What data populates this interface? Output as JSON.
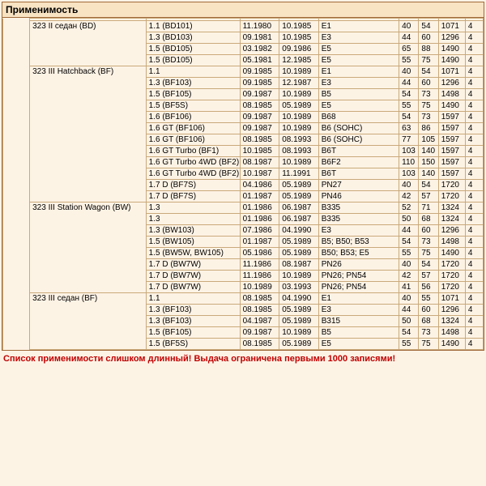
{
  "title": "Применимость",
  "footer": "Список применимости слишком длинный! Выдача ограничена первыми 1000 записями!",
  "groups": [
    {
      "model": "323 II седан (BD)",
      "rows": [
        {
          "spec": "1.1 (BD101)",
          "d1": "11.1980",
          "d2": "10.1985",
          "eng": "E1",
          "n1": "40",
          "n2": "54",
          "n3": "1071",
          "n4": "4"
        },
        {
          "spec": "1.3 (BD103)",
          "d1": "09.1981",
          "d2": "10.1985",
          "eng": "E3",
          "n1": "44",
          "n2": "60",
          "n3": "1296",
          "n4": "4"
        },
        {
          "spec": "1.5 (BD105)",
          "d1": "03.1982",
          "d2": "09.1986",
          "eng": "E5",
          "n1": "65",
          "n2": "88",
          "n3": "1490",
          "n4": "4"
        },
        {
          "spec": "1.5 (BD105)",
          "d1": "05.1981",
          "d2": "12.1985",
          "eng": "E5",
          "n1": "55",
          "n2": "75",
          "n3": "1490",
          "n4": "4"
        }
      ]
    },
    {
      "model": "323 III Hatchback (BF)",
      "rows": [
        {
          "spec": "1.1",
          "d1": "09.1985",
          "d2": "10.1989",
          "eng": "E1",
          "n1": "40",
          "n2": "54",
          "n3": "1071",
          "n4": "4"
        },
        {
          "spec": "1.3 (BF103)",
          "d1": "09.1985",
          "d2": "12.1987",
          "eng": "E3",
          "n1": "44",
          "n2": "60",
          "n3": "1296",
          "n4": "4"
        },
        {
          "spec": "1.5 (BF105)",
          "d1": "09.1987",
          "d2": "10.1989",
          "eng": "B5",
          "n1": "54",
          "n2": "73",
          "n3": "1498",
          "n4": "4"
        },
        {
          "spec": "1.5 (BF5S)",
          "d1": "08.1985",
          "d2": "05.1989",
          "eng": "E5",
          "n1": "55",
          "n2": "75",
          "n3": "1490",
          "n4": "4"
        },
        {
          "spec": "1.6 (BF106)",
          "d1": "09.1987",
          "d2": "10.1989",
          "eng": "B68",
          "n1": "54",
          "n2": "73",
          "n3": "1597",
          "n4": "4"
        },
        {
          "spec": "1.6 GT (BF106)",
          "d1": "09.1987",
          "d2": "10.1989",
          "eng": "B6 (SOHC)",
          "n1": "63",
          "n2": "86",
          "n3": "1597",
          "n4": "4"
        },
        {
          "spec": "1.6 GT (BF106)",
          "d1": "08.1985",
          "d2": "08.1993",
          "eng": "B6 (SOHC)",
          "n1": "77",
          "n2": "105",
          "n3": "1597",
          "n4": "4"
        },
        {
          "spec": "1.6 GT Turbo (BF1)",
          "d1": "10.1985",
          "d2": "08.1993",
          "eng": "B6T",
          "n1": "103",
          "n2": "140",
          "n3": "1597",
          "n4": "4"
        },
        {
          "spec": "1.6 GT Turbo 4WD (BF2)",
          "d1": "08.1987",
          "d2": "10.1989",
          "eng": "B6F2",
          "n1": "110",
          "n2": "150",
          "n3": "1597",
          "n4": "4"
        },
        {
          "spec": "1.6 GT Turbo 4WD (BF2)",
          "d1": "10.1987",
          "d2": "11.1991",
          "eng": "B6T",
          "n1": "103",
          "n2": "140",
          "n3": "1597",
          "n4": "4"
        },
        {
          "spec": "1.7 D (BF7S)",
          "d1": "04.1986",
          "d2": "05.1989",
          "eng": "PN27",
          "n1": "40",
          "n2": "54",
          "n3": "1720",
          "n4": "4"
        },
        {
          "spec": "1.7 D (BF7S)",
          "d1": "01.1987",
          "d2": "05.1989",
          "eng": "PN46",
          "n1": "42",
          "n2": "57",
          "n3": "1720",
          "n4": "4"
        }
      ]
    },
    {
      "model": "323 III Station Wagon (BW)",
      "rows": [
        {
          "spec": "1.3",
          "d1": "01.1986",
          "d2": "06.1987",
          "eng": "B335",
          "n1": "52",
          "n2": "71",
          "n3": "1324",
          "n4": "4"
        },
        {
          "spec": "1.3",
          "d1": "01.1986",
          "d2": "06.1987",
          "eng": "B335",
          "n1": "50",
          "n2": "68",
          "n3": "1324",
          "n4": "4"
        },
        {
          "spec": "1.3 (BW103)",
          "d1": "07.1986",
          "d2": "04.1990",
          "eng": "E3",
          "n1": "44",
          "n2": "60",
          "n3": "1296",
          "n4": "4"
        },
        {
          "spec": "1.5 (BW105)",
          "d1": "01.1987",
          "d2": "05.1989",
          "eng": "B5; B50; B53",
          "n1": "54",
          "n2": "73",
          "n3": "1498",
          "n4": "4"
        },
        {
          "spec": "1.5 (BW5W, BW105)",
          "d1": "05.1986",
          "d2": "05.1989",
          "eng": "B50; B53; E5",
          "n1": "55",
          "n2": "75",
          "n3": "1490",
          "n4": "4"
        },
        {
          "spec": "1.7 D (BW7W)",
          "d1": "11.1986",
          "d2": "08.1987",
          "eng": "PN26",
          "n1": "40",
          "n2": "54",
          "n3": "1720",
          "n4": "4"
        },
        {
          "spec": "1.7 D (BW7W)",
          "d1": "11.1986",
          "d2": "10.1989",
          "eng": "PN26; PN54",
          "n1": "42",
          "n2": "57",
          "n3": "1720",
          "n4": "4"
        },
        {
          "spec": "1.7 D (BW7W)",
          "d1": "10.1989",
          "d2": "03.1993",
          "eng": "PN26; PN54",
          "n1": "41",
          "n2": "56",
          "n3": "1720",
          "n4": "4"
        }
      ]
    },
    {
      "model": "323 III седан (BF)",
      "rows": [
        {
          "spec": "1.1",
          "d1": "08.1985",
          "d2": "04.1990",
          "eng": "E1",
          "n1": "40",
          "n2": "55",
          "n3": "1071",
          "n4": "4"
        },
        {
          "spec": "1.3 (BF103)",
          "d1": "08.1985",
          "d2": "05.1989",
          "eng": "E3",
          "n1": "44",
          "n2": "60",
          "n3": "1296",
          "n4": "4"
        },
        {
          "spec": "1.3 (BF103)",
          "d1": "04.1987",
          "d2": "05.1989",
          "eng": "B315",
          "n1": "50",
          "n2": "68",
          "n3": "1324",
          "n4": "4"
        },
        {
          "spec": "1.5 (BF105)",
          "d1": "09.1987",
          "d2": "10.1989",
          "eng": "B5",
          "n1": "54",
          "n2": "73",
          "n3": "1498",
          "n4": "4"
        },
        {
          "spec": "1.5 (BF5S)",
          "d1": "08.1985",
          "d2": "05.1989",
          "eng": "E5",
          "n1": "55",
          "n2": "75",
          "n3": "1490",
          "n4": "4"
        }
      ]
    }
  ]
}
